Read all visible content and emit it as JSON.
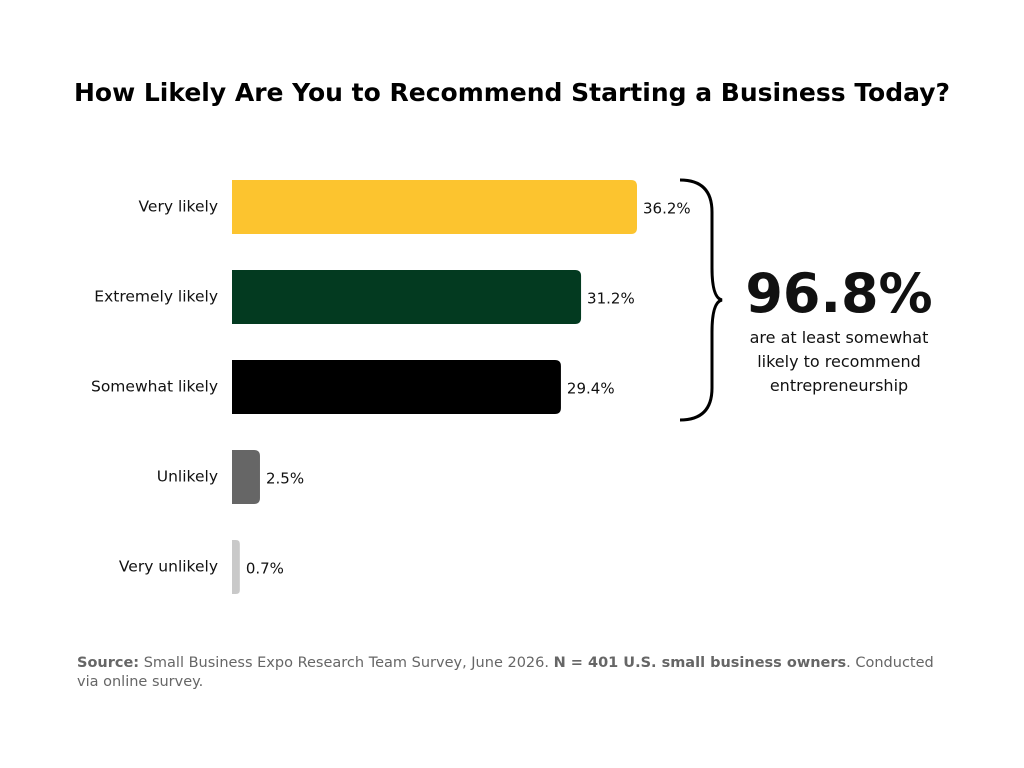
{
  "chart_data": {
    "type": "hbar",
    "title": "How Likely Are You to Recommend Starting a Business Today?",
    "categories": [
      "Very likely",
      "Extremely likely",
      "Somewhat likely",
      "Unlikely",
      "Very unlikely"
    ],
    "values": [
      36.2,
      31.2,
      29.4,
      2.5,
      0.7
    ],
    "value_labels": [
      "36.2%",
      "31.2%",
      "29.4%",
      "2.5%",
      "0.7%"
    ],
    "colors": [
      "#fcc42f",
      "#033a20",
      "#000000",
      "#666666",
      "#c9c9c9"
    ],
    "annotation": {
      "headline": "96.8%",
      "text": "are at least somewhat likely to recommend entrepreneurship"
    },
    "source": {
      "label": "Source:",
      "text": "Small Business Expo Research Team Survey, June 2026.",
      "sample": "N = 401 U.S. small business owners",
      "note": ". Conducted via online survey."
    }
  }
}
